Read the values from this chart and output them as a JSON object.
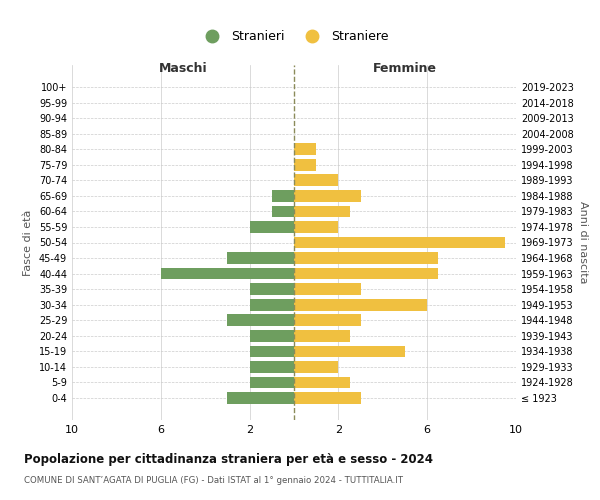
{
  "age_groups": [
    "100+",
    "95-99",
    "90-94",
    "85-89",
    "80-84",
    "75-79",
    "70-74",
    "65-69",
    "60-64",
    "55-59",
    "50-54",
    "45-49",
    "40-44",
    "35-39",
    "30-34",
    "25-29",
    "20-24",
    "15-19",
    "10-14",
    "5-9",
    "0-4"
  ],
  "birth_years": [
    "≤ 1923",
    "1924-1928",
    "1929-1933",
    "1934-1938",
    "1939-1943",
    "1944-1948",
    "1949-1953",
    "1954-1958",
    "1959-1963",
    "1964-1968",
    "1969-1973",
    "1974-1978",
    "1979-1983",
    "1984-1988",
    "1989-1993",
    "1994-1998",
    "1999-2003",
    "2004-2008",
    "2009-2013",
    "2014-2018",
    "2019-2023"
  ],
  "males": [
    0,
    0,
    0,
    0,
    0,
    0,
    0,
    1,
    1,
    2,
    0,
    3,
    6,
    2,
    2,
    3,
    2,
    2,
    2,
    2,
    3
  ],
  "females": [
    0,
    0,
    0,
    0,
    1,
    1,
    2,
    3,
    2.5,
    2,
    9.5,
    6.5,
    6.5,
    3,
    6,
    3,
    2.5,
    5,
    2,
    2.5,
    3
  ],
  "male_color": "#6e9e5f",
  "female_color": "#f0c040",
  "center_line_color": "#8B8B5A",
  "grid_color": "#cccccc",
  "background_color": "#ffffff",
  "title": "Popolazione per cittadinanza straniera per età e sesso - 2024",
  "subtitle": "COMUNE DI SANT’AGATA DI PUGLIA (FG) - Dati ISTAT al 1° gennaio 2024 - TUTTITALIA.IT",
  "legend_stranieri": "Stranieri",
  "legend_straniere": "Straniere",
  "xlabel_left": "Maschi",
  "xlabel_right": "Femmine",
  "ylabel_left": "Fasce di età",
  "ylabel_right": "Anni di nascita",
  "xlim": 10,
  "bar_height": 0.75
}
